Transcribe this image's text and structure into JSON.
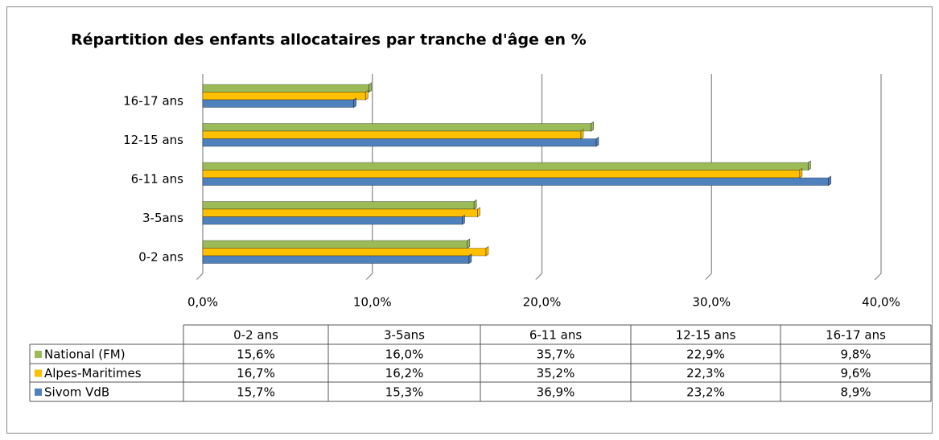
{
  "chart_data": {
    "type": "bar",
    "orientation": "horizontal",
    "title": "Répartition des enfants allocataires par tranche d'âge en %",
    "categories": [
      "0-2 ans",
      "3-5ans",
      "6-11 ans",
      "12-15 ans",
      "16-17 ans"
    ],
    "series": [
      {
        "name": "National (FM)",
        "color": "#9bbb59",
        "values": [
          15.6,
          16.0,
          35.7,
          22.9,
          9.8
        ],
        "value_labels": [
          "15,6%",
          "16,0%",
          "35,7%",
          "22,9%",
          "9,8%"
        ]
      },
      {
        "name": "Alpes-Maritimes",
        "color": "#ffc000",
        "values": [
          16.7,
          16.2,
          35.2,
          22.3,
          9.6
        ],
        "value_labels": [
          "16,7%",
          "16,2%",
          "35,2%",
          "22,3%",
          "9,6%"
        ]
      },
      {
        "name": "Sivom VdB",
        "color": "#4f81bd",
        "values": [
          15.7,
          15.3,
          36.9,
          23.2,
          8.9
        ],
        "value_labels": [
          "15,7%",
          "15,3%",
          "36,9%",
          "23,2%",
          "8,9%"
        ]
      }
    ],
    "xlim": [
      0,
      40
    ],
    "xticks": [
      {
        "value": 0,
        "label": "0,0%"
      },
      {
        "value": 10,
        "label": "10,0%"
      },
      {
        "value": 20,
        "label": "20,0%"
      },
      {
        "value": 30,
        "label": "30,0%"
      },
      {
        "value": 40,
        "label": "40,0%"
      }
    ],
    "grid": true,
    "data_table": true
  }
}
